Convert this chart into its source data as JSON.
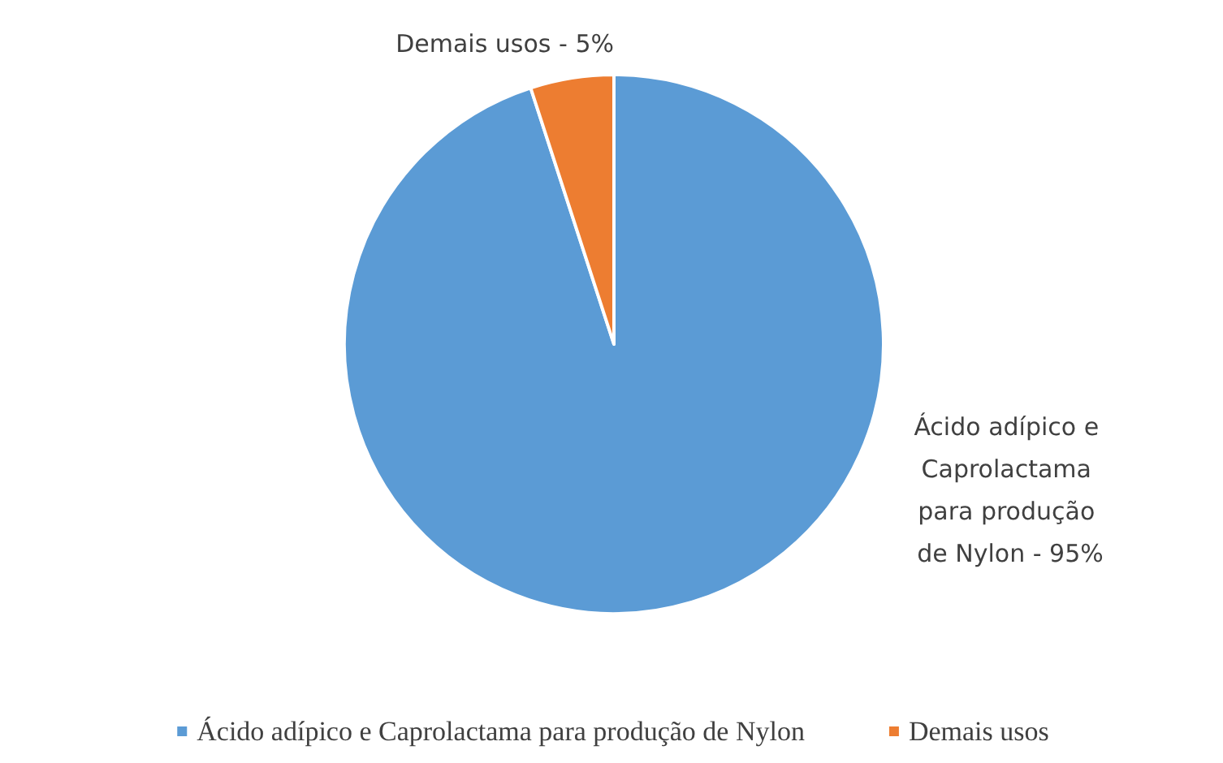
{
  "chart_data": {
    "type": "pie",
    "categories": [
      "Ácido adípico e Caprolactama para produção de Nylon",
      "Demais usos"
    ],
    "values": [
      95,
      5
    ],
    "colors": [
      "#5b9bd5",
      "#ed7d31"
    ],
    "annotations": [
      "Ácido adípico e Caprolactama para produção de Nylon - 95%",
      "Demais usos - 5%"
    ],
    "legend": "bottom"
  }
}
